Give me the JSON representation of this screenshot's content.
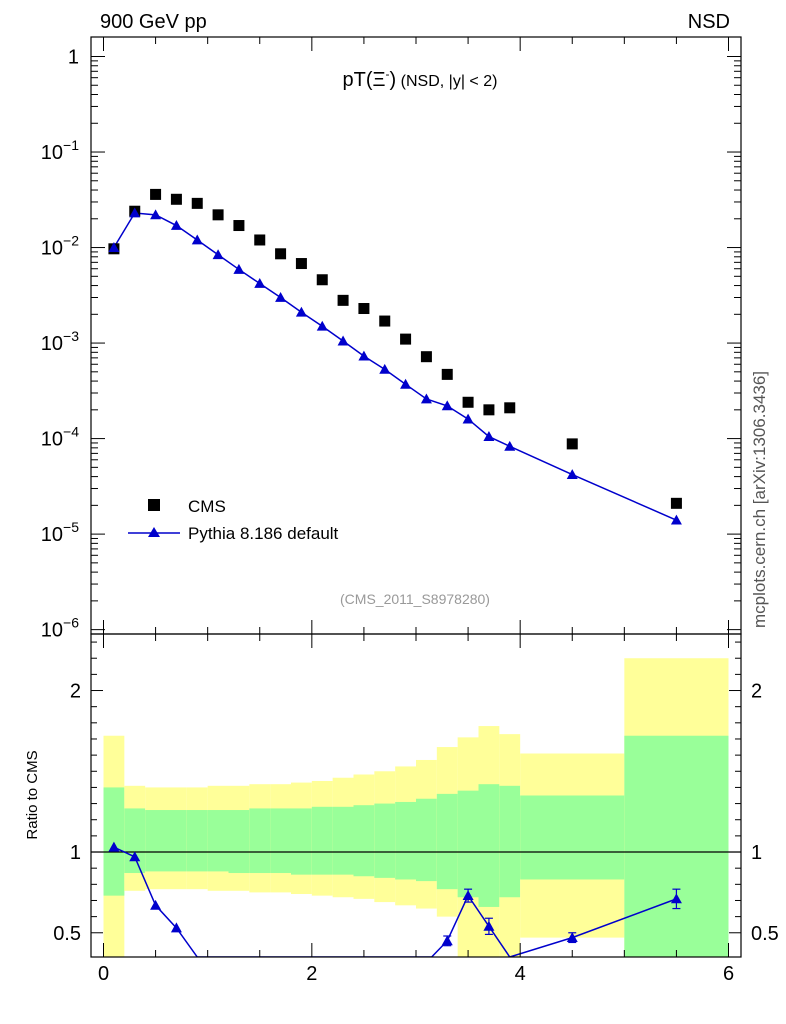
{
  "header": {
    "left_label": "900 GeV pp",
    "right_label": "NSD",
    "side_label": "mcplots.cern.ch [arXiv:1306.3436]",
    "watermark": "(CMS_2011_S8978280)"
  },
  "main_panel": {
    "title_main": "pT(Ξ",
    "title_sup": "-",
    "title_close": ")",
    "title_cond": " (NSD, |y| < 2)",
    "y_ticks": [
      {
        "value": 1,
        "label": "1"
      },
      {
        "value": 0.1,
        "base": "10",
        "exp": "−1"
      },
      {
        "value": 0.01,
        "base": "10",
        "exp": "−2"
      },
      {
        "value": 0.001,
        "base": "10",
        "exp": "−3"
      },
      {
        "value": 0.0001,
        "base": "10",
        "exp": "−4"
      },
      {
        "value": 1e-05,
        "base": "10",
        "exp": "−5"
      },
      {
        "value": 1e-06,
        "base": "10",
        "exp": "−6"
      }
    ],
    "legend": [
      {
        "name": "CMS",
        "marker": "square",
        "color": "#000000"
      },
      {
        "name": "Pythia 8.186 default",
        "marker": "triangle",
        "color": "#0000cc"
      }
    ]
  },
  "ratio_panel": {
    "ylabel": "Ratio to CMS",
    "y_ticks": [
      {
        "value": 2,
        "label": "2"
      },
      {
        "value": 1,
        "label": "1"
      },
      {
        "value": 0.5,
        "label": "0.5"
      }
    ]
  },
  "x_axis": {
    "ticks": [
      {
        "value": 0,
        "label": "0"
      },
      {
        "value": 2,
        "label": "2"
      },
      {
        "value": 4,
        "label": "4"
      },
      {
        "value": 6,
        "label": "6"
      }
    ]
  },
  "chart_data": [
    {
      "type": "scatter",
      "panel": "main",
      "yscale": "log",
      "xlim": [
        -0.12,
        6.12
      ],
      "ylim": [
        9e-07,
        1.6
      ],
      "series": [
        {
          "name": "CMS",
          "marker": "square",
          "color": "#000000",
          "x": [
            0.1,
            0.3,
            0.5,
            0.7,
            0.9,
            1.1,
            1.3,
            1.5,
            1.7,
            1.9,
            2.1,
            2.3,
            2.5,
            2.7,
            2.9,
            3.1,
            3.3,
            3.5,
            3.7,
            3.9,
            4.5,
            5.5
          ],
          "y": [
            0.0097,
            0.024,
            0.036,
            0.032,
            0.029,
            0.022,
            0.017,
            0.012,
            0.0086,
            0.0068,
            0.0046,
            0.0028,
            0.0023,
            0.0017,
            0.0011,
            0.00072,
            0.00047,
            0.00024,
            0.0002,
            0.00021,
            8.8e-05,
            2.1e-05
          ]
        },
        {
          "name": "Pythia 8.186 default",
          "marker": "triangle",
          "color": "#0000cc",
          "x": [
            0.1,
            0.3,
            0.5,
            0.7,
            0.9,
            1.1,
            1.3,
            1.5,
            1.7,
            1.9,
            2.1,
            2.3,
            2.5,
            2.7,
            2.9,
            3.1,
            3.3,
            3.5,
            3.7,
            3.9,
            4.5,
            5.5
          ],
          "y": [
            0.01,
            0.023,
            0.022,
            0.017,
            0.012,
            0.0084,
            0.0059,
            0.0042,
            0.003,
            0.0021,
            0.0015,
            0.00105,
            0.00073,
            0.00053,
            0.00037,
            0.00026,
            0.00022,
            0.00016,
            0.000105,
            8.3e-05,
            4.2e-05,
            1.4e-05
          ]
        }
      ]
    },
    {
      "type": "line",
      "panel": "ratio",
      "ylabel": "Ratio to CMS",
      "xlim": [
        -0.12,
        6.12
      ],
      "ylim": [
        0.35,
        2.35
      ],
      "reference_line": 1,
      "bands": {
        "edges": [
          0.0,
          0.2,
          0.4,
          0.6,
          0.8,
          1.0,
          1.2,
          1.4,
          1.6,
          1.8,
          2.0,
          2.2,
          2.4,
          2.6,
          2.8,
          3.0,
          3.2,
          3.4,
          3.6,
          3.8,
          4.0,
          5.0,
          6.0
        ],
        "outer_color": "#ffff99",
        "inner_color": "#99ff99",
        "outer_lo": [
          0.0,
          0.76,
          0.77,
          0.77,
          0.77,
          0.76,
          0.76,
          0.75,
          0.75,
          0.74,
          0.73,
          0.72,
          0.71,
          0.69,
          0.67,
          0.65,
          0.6,
          0.35,
          0.35,
          0.35,
          0.47,
          0.35
        ],
        "outer_hi": [
          1.72,
          1.41,
          1.4,
          1.4,
          1.4,
          1.41,
          1.41,
          1.42,
          1.42,
          1.43,
          1.44,
          1.46,
          1.48,
          1.5,
          1.53,
          1.57,
          1.65,
          1.71,
          1.78,
          1.73,
          1.61,
          2.2
        ],
        "inner_lo": [
          0.73,
          0.87,
          0.88,
          0.88,
          0.88,
          0.88,
          0.87,
          0.87,
          0.87,
          0.86,
          0.86,
          0.86,
          0.85,
          0.84,
          0.83,
          0.82,
          0.77,
          0.72,
          0.66,
          0.72,
          0.83,
          0.35
        ],
        "inner_hi": [
          1.4,
          1.27,
          1.26,
          1.26,
          1.26,
          1.26,
          1.26,
          1.27,
          1.27,
          1.27,
          1.28,
          1.28,
          1.29,
          1.3,
          1.31,
          1.33,
          1.36,
          1.38,
          1.42,
          1.41,
          1.35,
          1.72
        ]
      },
      "series": [
        {
          "name": "Pythia 8.186 default",
          "marker": "triangle",
          "color": "#0000cc",
          "x": [
            0.1,
            0.3,
            0.5,
            0.7,
            3.3,
            3.5,
            3.7,
            4.5,
            5.5
          ],
          "y": [
            1.03,
            0.97,
            0.67,
            0.53,
            0.45,
            0.73,
            0.54,
            0.47,
            0.71
          ],
          "yerr": [
            0,
            0,
            0,
            0,
            0.03,
            0.04,
            0.05,
            0.03,
            0.06
          ],
          "path_x": [
            0.1,
            0.3,
            0.5,
            0.7,
            0.9,
            3.15,
            3.3,
            3.5,
            3.7,
            3.9,
            4.5,
            5.5
          ],
          "path_y": [
            1.03,
            0.97,
            0.67,
            0.53,
            0.35,
            0.35,
            0.45,
            0.73,
            0.54,
            0.35,
            0.47,
            0.71
          ]
        }
      ]
    }
  ]
}
